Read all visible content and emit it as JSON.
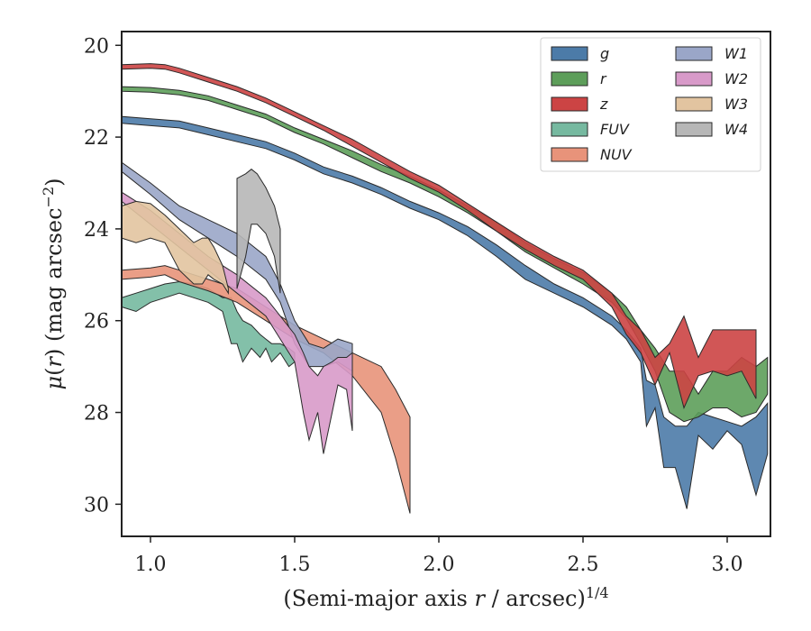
{
  "chart_data": {
    "type": "area",
    "xlabel": "(Semi-major axis r / arcsec)^{1/4}",
    "ylabel": "μ(r) (mag arcsec^{-2})",
    "xlim": [
      0.9,
      3.15
    ],
    "ylim": [
      30.7,
      19.7
    ],
    "y_inverted": true,
    "xticks": [
      1.0,
      1.5,
      2.0,
      2.5,
      3.0
    ],
    "xtick_labels": [
      "1.0",
      "1.5",
      "2.0",
      "2.5",
      "3.0"
    ],
    "yticks": [
      20,
      22,
      24,
      26,
      28,
      30
    ],
    "ytick_labels": [
      "20",
      "22",
      "24",
      "26",
      "28",
      "30"
    ],
    "grid": false,
    "legend": {
      "placement": "top-right",
      "columns": 2
    },
    "series": [
      {
        "name": "g",
        "color": "#4c7ba8",
        "x": [
          0.9,
          1.0,
          1.1,
          1.2,
          1.3,
          1.4,
          1.5,
          1.6,
          1.7,
          1.8,
          1.9,
          2.0,
          2.1,
          2.2,
          2.3,
          2.4,
          2.5,
          2.6,
          2.65,
          2.7,
          2.72,
          2.75,
          2.78,
          2.82,
          2.86,
          2.9,
          2.95,
          3.0,
          3.05,
          3.1,
          3.14
        ],
        "lower": [
          21.55,
          21.6,
          21.65,
          21.8,
          21.95,
          22.1,
          22.35,
          22.65,
          22.85,
          23.1,
          23.4,
          23.65,
          23.95,
          24.35,
          24.8,
          25.2,
          25.5,
          25.9,
          26.2,
          26.6,
          27.3,
          27.4,
          28.1,
          28.3,
          28.3,
          28.0,
          28.1,
          28.2,
          28.3,
          28.1,
          27.8
        ],
        "upper": [
          21.7,
          21.75,
          21.8,
          21.95,
          22.1,
          22.25,
          22.5,
          22.8,
          23.0,
          23.25,
          23.55,
          23.8,
          24.15,
          24.6,
          25.1,
          25.4,
          25.7,
          26.1,
          26.4,
          26.9,
          28.3,
          27.9,
          29.2,
          29.2,
          30.1,
          28.5,
          28.8,
          28.4,
          28.7,
          29.8,
          28.9
        ]
      },
      {
        "name": "r",
        "color": "#5d9e5a",
        "x": [
          0.9,
          1.0,
          1.1,
          1.2,
          1.3,
          1.4,
          1.5,
          1.6,
          1.7,
          1.8,
          1.9,
          2.0,
          2.1,
          2.2,
          2.3,
          2.4,
          2.5,
          2.6,
          2.65,
          2.7,
          2.75,
          2.8,
          2.85,
          2.9,
          2.95,
          3.0,
          3.05,
          3.1,
          3.14
        ],
        "lower": [
          20.9,
          20.92,
          20.98,
          21.1,
          21.3,
          21.5,
          21.8,
          22.05,
          22.3,
          22.6,
          22.85,
          23.15,
          23.5,
          23.85,
          24.3,
          24.65,
          24.95,
          25.4,
          25.7,
          26.2,
          26.6,
          27.1,
          27.1,
          27.6,
          27.1,
          27.1,
          26.8,
          27.0,
          26.8
        ],
        "upper": [
          21.0,
          21.02,
          21.08,
          21.2,
          21.4,
          21.6,
          21.9,
          22.15,
          22.45,
          22.75,
          23.0,
          23.3,
          23.65,
          24.05,
          24.5,
          24.85,
          25.2,
          25.6,
          25.95,
          26.5,
          27.1,
          28.0,
          28.2,
          28.1,
          27.9,
          27.9,
          28.1,
          28.0,
          27.6
        ]
      },
      {
        "name": "z",
        "color": "#cc4444",
        "x": [
          0.9,
          1.0,
          1.05,
          1.1,
          1.2,
          1.3,
          1.4,
          1.5,
          1.6,
          1.7,
          1.8,
          1.9,
          2.0,
          2.1,
          2.2,
          2.3,
          2.4,
          2.5,
          2.6,
          2.65,
          2.7,
          2.75,
          2.8,
          2.85,
          2.9,
          2.95,
          3.0,
          3.05,
          3.1
        ],
        "lower": [
          20.42,
          20.4,
          20.42,
          20.5,
          20.7,
          20.9,
          21.15,
          21.45,
          21.75,
          22.05,
          22.4,
          22.75,
          23.05,
          23.45,
          23.85,
          24.25,
          24.6,
          24.9,
          25.4,
          25.9,
          26.2,
          26.8,
          26.5,
          25.9,
          26.8,
          26.2,
          26.2,
          26.2,
          26.2
        ],
        "upper": [
          20.52,
          20.5,
          20.52,
          20.6,
          20.8,
          21.0,
          21.25,
          21.55,
          21.85,
          22.2,
          22.55,
          22.9,
          23.2,
          23.6,
          24.05,
          24.45,
          24.8,
          25.1,
          25.7,
          26.3,
          26.7,
          27.4,
          26.7,
          27.9,
          27.2,
          27.1,
          27.2,
          27.1,
          27.7
        ]
      },
      {
        "name": "FUV",
        "color": "#76b9a0",
        "x": [
          0.9,
          0.95,
          1.0,
          1.05,
          1.1,
          1.15,
          1.2,
          1.25,
          1.28,
          1.3,
          1.32,
          1.35,
          1.38,
          1.4,
          1.42,
          1.45,
          1.48,
          1.5
        ],
        "lower": [
          25.5,
          25.4,
          25.3,
          25.2,
          25.15,
          25.2,
          25.3,
          25.5,
          25.5,
          25.8,
          26.0,
          26.1,
          26.3,
          26.4,
          26.5,
          26.5,
          26.6,
          26.7
        ],
        "upper": [
          25.7,
          25.8,
          25.6,
          25.5,
          25.4,
          25.5,
          25.6,
          25.8,
          26.5,
          26.5,
          26.9,
          26.6,
          26.8,
          26.6,
          26.9,
          26.7,
          27.0,
          26.9
        ]
      },
      {
        "name": "NUV",
        "color": "#e8937a",
        "x": [
          0.9,
          1.0,
          1.05,
          1.1,
          1.2,
          1.3,
          1.4,
          1.5,
          1.6,
          1.7,
          1.8,
          1.85,
          1.9
        ],
        "lower": [
          24.9,
          24.85,
          24.8,
          24.9,
          25.1,
          25.3,
          25.7,
          26.1,
          26.4,
          26.7,
          27.0,
          27.5,
          28.1
        ],
        "upper": [
          25.1,
          25.05,
          25.0,
          25.15,
          25.35,
          25.6,
          26.0,
          26.4,
          26.7,
          27.2,
          28.0,
          29.0,
          30.2
        ]
      },
      {
        "name": "W1",
        "color": "#9aa6c8",
        "x": [
          0.9,
          1.0,
          1.1,
          1.2,
          1.3,
          1.4,
          1.45,
          1.5,
          1.55,
          1.6,
          1.65,
          1.7
        ],
        "lower": [
          22.55,
          23.0,
          23.5,
          23.8,
          24.1,
          24.6,
          25.2,
          26.0,
          26.5,
          26.6,
          26.4,
          26.5
        ],
        "upper": [
          22.75,
          23.25,
          23.8,
          24.2,
          24.6,
          25.1,
          25.6,
          26.5,
          27.0,
          27.0,
          26.9,
          27.1
        ]
      },
      {
        "name": "W2",
        "color": "#d89ac9",
        "x": [
          0.9,
          1.0,
          1.1,
          1.2,
          1.3,
          1.4,
          1.45,
          1.5,
          1.53,
          1.55,
          1.58,
          1.6,
          1.63,
          1.65,
          1.68,
          1.7
        ],
        "lower": [
          23.2,
          23.6,
          24.1,
          24.6,
          25.0,
          25.5,
          25.9,
          26.3,
          26.7,
          27.0,
          27.2,
          27.0,
          26.9,
          26.8,
          26.8,
          26.7
        ],
        "upper": [
          23.4,
          23.9,
          24.4,
          24.9,
          25.4,
          25.9,
          26.4,
          26.9,
          28.0,
          28.6,
          28.0,
          28.9,
          28.0,
          27.4,
          27.5,
          28.4
        ]
      },
      {
        "name": "W3",
        "color": "#e2c4a0",
        "x": [
          0.9,
          0.95,
          1.0,
          1.05,
          1.1,
          1.15,
          1.18,
          1.2,
          1.22,
          1.25,
          1.27
        ],
        "lower": [
          23.5,
          23.4,
          23.45,
          23.7,
          24.0,
          24.3,
          24.2,
          24.2,
          24.4,
          24.8,
          25.3
        ],
        "upper": [
          24.2,
          24.3,
          24.2,
          24.3,
          24.9,
          25.2,
          25.2,
          25.0,
          25.1,
          25.2,
          25.4
        ]
      },
      {
        "name": "W4",
        "color": "#b7b7b7",
        "x": [
          1.3,
          1.33,
          1.35,
          1.37,
          1.4,
          1.43,
          1.45
        ],
        "lower": [
          22.9,
          22.8,
          22.7,
          22.8,
          23.1,
          23.5,
          24.0
        ],
        "upper": [
          25.3,
          24.6,
          23.9,
          23.9,
          24.1,
          24.6,
          25.4
        ]
      }
    ]
  }
}
